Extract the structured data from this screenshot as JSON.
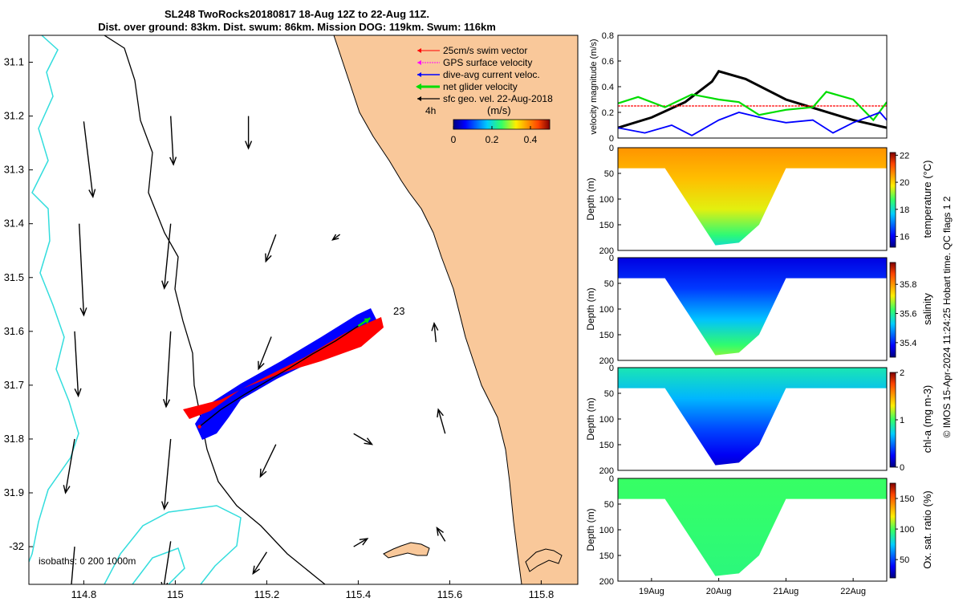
{
  "title": {
    "line1": "SL248 TwoRocks20180817 18-Aug 12Z to 22-Aug 11Z.",
    "line2": "Dist. over ground: 83km. Dist. swum: 86km. Mission DOG: 119km. Swum: 116km"
  },
  "footer_note": "© IMOS 15-Apr-2024 11:24:25 Hobart time. QC flags 1  2",
  "colors": {
    "land": "#f9c89a",
    "isobath_200": "#000000",
    "isobath_1000": "#33dddd",
    "swim": "#ff0000",
    "gps": "#ff00ff",
    "dive_avg": "#0000ff",
    "net_glider": "#00dd00",
    "geo_vel": "#000000"
  },
  "chart_data": [
    {
      "type": "map",
      "name": "glider-track-map",
      "x_ticks": [
        "114.8",
        "115",
        "115.2",
        "115.4",
        "115.6",
        "115.8"
      ],
      "x_tick_values": [
        114.8,
        115.0,
        115.2,
        115.4,
        115.6,
        115.8
      ],
      "y_ticks": [
        "31.1",
        "31.2",
        "31.3",
        "31.4",
        "31.5",
        "31.6",
        "31.7",
        "31.8",
        "31.9",
        "-32"
      ],
      "y_tick_values": [
        -31.1,
        -31.2,
        -31.3,
        -31.4,
        -31.5,
        -31.6,
        -31.7,
        -31.8,
        -31.9,
        -32.0
      ],
      "xlim": [
        114.68,
        115.88
      ],
      "ylim": [
        -32.07,
        -31.05
      ],
      "legend": {
        "position": "top-right",
        "entries": [
          "25cm/s swim vector",
          "GPS surface velocity",
          "dive-avg current veloc.",
          "net glider velocity",
          "sfc geo. vel. 22-Aug-2018"
        ]
      },
      "time_label": "4h",
      "colorbar": {
        "label": "(m/s)",
        "ticks": [
          "0",
          "0.2",
          "0.4"
        ],
        "tick_values": [
          0,
          0.2,
          0.4
        ],
        "range": [
          0,
          0.5
        ]
      },
      "isobath_note": "isobaths: 0   200  1000m",
      "end_label": "23",
      "track": [
        {
          "lon": 115.053,
          "lat": -31.777
        },
        {
          "lon": 115.1,
          "lat": -31.745
        },
        {
          "lon": 115.15,
          "lat": -31.718
        },
        {
          "lon": 115.2,
          "lat": -31.693
        },
        {
          "lon": 115.25,
          "lat": -31.668
        },
        {
          "lon": 115.3,
          "lat": -31.642
        },
        {
          "lon": 115.35,
          "lat": -31.618
        },
        {
          "lon": 115.4,
          "lat": -31.59
        }
      ],
      "geo_vectors": [
        {
          "lon": 114.8,
          "lat": -31.21,
          "dlon": 0.02,
          "dlat": -0.14
        },
        {
          "lon": 114.99,
          "lat": -31.2,
          "dlon": 0.006,
          "dlat": -0.09
        },
        {
          "lon": 115.16,
          "lat": -31.2,
          "dlon": 0.0,
          "dlat": -0.06
        },
        {
          "lon": 114.79,
          "lat": -31.4,
          "dlon": 0.01,
          "dlat": -0.17
        },
        {
          "lon": 114.99,
          "lat": -31.4,
          "dlon": -0.014,
          "dlat": -0.12
        },
        {
          "lon": 115.22,
          "lat": -31.42,
          "dlon": -0.022,
          "dlat": -0.05
        },
        {
          "lon": 115.36,
          "lat": -31.42,
          "dlon": -0.016,
          "dlat": -0.01
        },
        {
          "lon": 114.78,
          "lat": -31.6,
          "dlon": 0.008,
          "dlat": -0.12
        },
        {
          "lon": 114.99,
          "lat": -31.6,
          "dlon": -0.01,
          "dlat": -0.14
        },
        {
          "lon": 115.21,
          "lat": -31.61,
          "dlon": -0.028,
          "dlat": -0.06
        },
        {
          "lon": 115.57,
          "lat": -31.62,
          "dlon": -0.004,
          "dlat": 0.035
        },
        {
          "lon": 114.78,
          "lat": -31.8,
          "dlon": -0.02,
          "dlat": -0.1
        },
        {
          "lon": 114.99,
          "lat": -31.8,
          "dlon": -0.014,
          "dlat": -0.13
        },
        {
          "lon": 115.22,
          "lat": -31.81,
          "dlon": -0.034,
          "dlat": -0.06
        },
        {
          "lon": 115.39,
          "lat": -31.79,
          "dlon": 0.04,
          "dlat": -0.02
        },
        {
          "lon": 115.59,
          "lat": -31.79,
          "dlon": -0.015,
          "dlat": 0.045
        },
        {
          "lon": 114.78,
          "lat": -32.0,
          "dlon": -0.01,
          "dlat": -0.1
        },
        {
          "lon": 114.99,
          "lat": -31.99,
          "dlon": -0.016,
          "dlat": -0.09
        },
        {
          "lon": 115.2,
          "lat": -32.01,
          "dlon": -0.03,
          "dlat": -0.04
        },
        {
          "lon": 115.39,
          "lat": -32.0,
          "dlon": 0.03,
          "dlat": 0.015
        },
        {
          "lon": 115.59,
          "lat": -31.99,
          "dlon": -0.018,
          "dlat": 0.025
        }
      ]
    },
    {
      "type": "line",
      "name": "velocity-magnitude",
      "ylabel": "velocity magnitude (m/s)",
      "ylim": [
        0,
        0.8
      ],
      "y_ticks": [
        "0",
        "0.2",
        "0.4",
        "0.6",
        "0.8"
      ],
      "y_tick_values": [
        0,
        0.2,
        0.4,
        0.6,
        0.8
      ],
      "xlim": [
        18.5,
        22.5
      ],
      "series": [
        {
          "name": "geo-velocity",
          "color": "#000000",
          "x": [
            18.5,
            19.0,
            19.5,
            19.9,
            20.0,
            20.4,
            21.0,
            21.5,
            22.0,
            22.5
          ],
          "values": [
            0.08,
            0.16,
            0.28,
            0.44,
            0.52,
            0.46,
            0.3,
            0.22,
            0.14,
            0.08
          ]
        },
        {
          "name": "swim-vector",
          "color": "#ff0000",
          "x": [
            18.5,
            22.5
          ],
          "values": [
            0.25,
            0.25
          ]
        },
        {
          "name": "net-glider",
          "color": "#00dd00",
          "x": [
            18.5,
            18.8,
            19.2,
            19.6,
            20.0,
            20.3,
            20.6,
            21.0,
            21.4,
            21.6,
            22.0,
            22.3,
            22.5
          ],
          "values": [
            0.27,
            0.32,
            0.24,
            0.34,
            0.3,
            0.28,
            0.18,
            0.22,
            0.24,
            0.36,
            0.3,
            0.14,
            0.28
          ]
        },
        {
          "name": "dive-avg",
          "color": "#0000ff",
          "x": [
            18.5,
            18.9,
            19.3,
            19.6,
            20.0,
            20.3,
            20.7,
            21.0,
            21.4,
            21.7,
            22.0,
            22.4,
            22.5
          ],
          "values": [
            0.08,
            0.04,
            0.1,
            0.02,
            0.14,
            0.2,
            0.15,
            0.12,
            0.14,
            0.04,
            0.12,
            0.2,
            0.14
          ]
        }
      ]
    },
    {
      "type": "heatmap",
      "name": "temperature-section",
      "ylabel": "Depth (m)",
      "y_ticks": [
        "0",
        "50",
        "100",
        "150",
        "200"
      ],
      "y_tick_values": [
        0,
        50,
        100,
        150,
        200
      ],
      "ylim": [
        0,
        200
      ],
      "colorbar": {
        "label": "temperature (°C)",
        "ticks": [
          "22",
          "20",
          "18",
          "16"
        ],
        "tick_values": [
          22,
          20,
          18,
          16
        ],
        "range": [
          15.2,
          22.2
        ]
      },
      "profile_bottom": [
        {
          "day": 18.5,
          "depth": 40
        },
        {
          "day": 19.2,
          "depth": 40
        },
        {
          "day": 19.55,
          "depth": 110
        },
        {
          "day": 19.95,
          "depth": 190
        },
        {
          "day": 20.3,
          "depth": 185
        },
        {
          "day": 20.6,
          "depth": 150
        },
        {
          "day": 21.0,
          "depth": 40
        },
        {
          "day": 21.8,
          "depth": 40
        },
        {
          "day": 22.5,
          "depth": 40
        }
      ],
      "layers": [
        {
          "depth": 0,
          "value": 20.6
        },
        {
          "depth": 60,
          "value": 20.2
        },
        {
          "depth": 120,
          "value": 19.6
        },
        {
          "depth": 170,
          "value": 18.6
        },
        {
          "depth": 200,
          "value": 17.8
        }
      ]
    },
    {
      "type": "heatmap",
      "name": "salinity-section",
      "ylabel": "Depth (m)",
      "y_ticks": [
        "0",
        "50",
        "100",
        "150",
        "200"
      ],
      "y_tick_values": [
        0,
        50,
        100,
        150,
        200
      ],
      "ylim": [
        0,
        200
      ],
      "colorbar": {
        "label": "salinity",
        "ticks": [
          "35.8",
          "35.6",
          "35.4"
        ],
        "tick_values": [
          35.8,
          35.6,
          35.4
        ],
        "range": [
          35.3,
          35.95
        ]
      },
      "profile_bottom": [
        {
          "day": 18.5,
          "depth": 40
        },
        {
          "day": 19.2,
          "depth": 40
        },
        {
          "day": 19.55,
          "depth": 110
        },
        {
          "day": 19.95,
          "depth": 190
        },
        {
          "day": 20.3,
          "depth": 185
        },
        {
          "day": 20.6,
          "depth": 150
        },
        {
          "day": 21.0,
          "depth": 40
        },
        {
          "day": 21.8,
          "depth": 40
        },
        {
          "day": 22.5,
          "depth": 40
        }
      ],
      "layers": [
        {
          "depth": 0,
          "value": 35.36
        },
        {
          "depth": 60,
          "value": 35.42
        },
        {
          "depth": 120,
          "value": 35.52
        },
        {
          "depth": 170,
          "value": 35.62
        },
        {
          "depth": 200,
          "value": 35.68
        }
      ]
    },
    {
      "type": "heatmap",
      "name": "chla-section",
      "ylabel": "Depth (m)",
      "y_ticks": [
        "0",
        "50",
        "100",
        "150",
        "200"
      ],
      "y_tick_values": [
        0,
        50,
        100,
        150,
        200
      ],
      "ylim": [
        0,
        200
      ],
      "colorbar": {
        "label": "chl-a (mg m-3)",
        "ticks": [
          "2",
          "1",
          "0"
        ],
        "tick_values": [
          2,
          1,
          0
        ],
        "range": [
          0,
          2
        ]
      },
      "profile_bottom": [
        {
          "day": 18.5,
          "depth": 40
        },
        {
          "day": 19.2,
          "depth": 40
        },
        {
          "day": 19.55,
          "depth": 110
        },
        {
          "day": 19.95,
          "depth": 190
        },
        {
          "day": 20.3,
          "depth": 185
        },
        {
          "day": 20.6,
          "depth": 150
        },
        {
          "day": 21.0,
          "depth": 40
        },
        {
          "day": 21.8,
          "depth": 40
        },
        {
          "day": 22.5,
          "depth": 40
        }
      ],
      "layers": [
        {
          "depth": 0,
          "value": 0.85
        },
        {
          "depth": 60,
          "value": 0.65
        },
        {
          "depth": 120,
          "value": 0.4
        },
        {
          "depth": 170,
          "value": 0.22
        },
        {
          "depth": 200,
          "value": 0.12
        }
      ]
    },
    {
      "type": "heatmap",
      "name": "oxygen-section",
      "ylabel": "Depth (m)",
      "y_ticks": [
        "0",
        "50",
        "100",
        "150",
        "200"
      ],
      "y_tick_values": [
        0,
        50,
        100,
        150,
        200
      ],
      "ylim": [
        0,
        200
      ],
      "x_ticks": [
        "19Aug",
        "20Aug",
        "21Aug",
        "22Aug"
      ],
      "x_tick_values": [
        19,
        20,
        21,
        22
      ],
      "xlim": [
        18.5,
        22.5
      ],
      "colorbar": {
        "label": "Ox. sat. ratio (%)",
        "ticks": [
          "150",
          "100",
          "50"
        ],
        "tick_values": [
          150,
          100,
          50
        ],
        "range": [
          20,
          175
        ]
      },
      "profile_bottom": [
        {
          "day": 18.5,
          "depth": 40
        },
        {
          "day": 19.2,
          "depth": 40
        },
        {
          "day": 19.55,
          "depth": 110
        },
        {
          "day": 19.95,
          "depth": 190
        },
        {
          "day": 20.3,
          "depth": 185
        },
        {
          "day": 20.6,
          "depth": 150
        },
        {
          "day": 21.0,
          "depth": 40
        },
        {
          "day": 21.8,
          "depth": 40
        },
        {
          "day": 22.5,
          "depth": 40
        }
      ],
      "layers": [
        {
          "depth": 0,
          "value": 98
        },
        {
          "depth": 100,
          "value": 96
        },
        {
          "depth": 200,
          "value": 94
        }
      ]
    }
  ]
}
